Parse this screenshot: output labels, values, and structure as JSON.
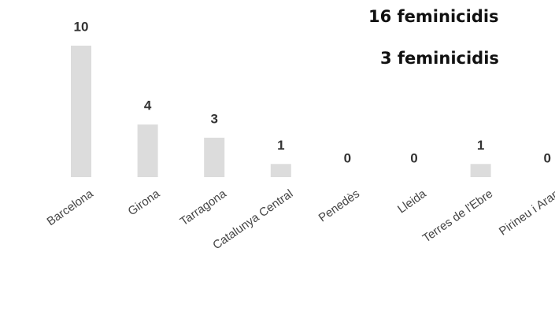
{
  "chart_data": {
    "type": "bar",
    "annotations": [
      "16 feminicidis",
      "3 feminicidis"
    ],
    "categories": [
      "Barcelona",
      "Girona",
      "Tarragona",
      "Catalunya Central",
      "Penedès",
      "Lleida",
      "Terres de l'Ebre",
      "Pirineu i Aran"
    ],
    "values": [
      10,
      4,
      3,
      1,
      0,
      0,
      1,
      0
    ],
    "color": "#dcdcdc"
  }
}
